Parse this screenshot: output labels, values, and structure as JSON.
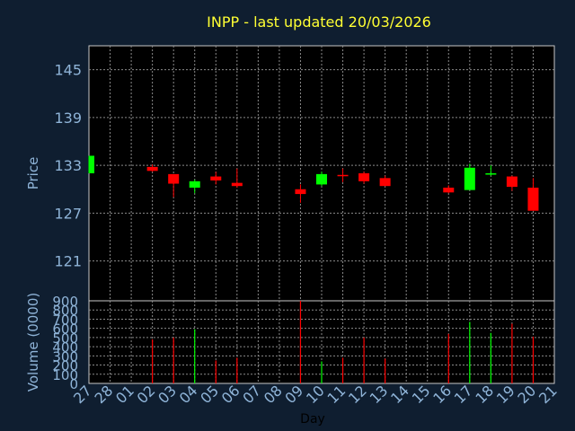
{
  "chart_data": {
    "type": "candlestick",
    "title": "INPP - last updated 20/03/2026",
    "xlabel": "Day",
    "price_panel": {
      "ylabel": "Price",
      "ylim": [
        116,
        148
      ],
      "yticks": [
        145,
        139,
        133,
        127,
        121
      ],
      "grid": true
    },
    "volume_panel": {
      "ylabel": "Volume (0000)",
      "ylim": [
        0,
        900
      ],
      "yticks": [
        900,
        800,
        700,
        600,
        500,
        400,
        300,
        200,
        100,
        0
      ],
      "grid": true
    },
    "x_ticks": [
      "27",
      "28",
      "01",
      "02",
      "03",
      "04",
      "05",
      "06",
      "07",
      "08",
      "09",
      "10",
      "11",
      "12",
      "13",
      "14",
      "15",
      "16",
      "17",
      "18",
      "19",
      "20",
      "21"
    ],
    "candles": [
      {
        "day": "27",
        "open": 132.0,
        "close": 134.2,
        "high": 134.2,
        "low": 132.0,
        "volume": 0
      },
      {
        "day": "02",
        "open": 132.8,
        "close": 132.3,
        "high": 133.1,
        "low": 132.2,
        "volume": 480
      },
      {
        "day": "03",
        "open": 131.9,
        "close": 130.7,
        "high": 131.9,
        "low": 129.0,
        "volume": 500
      },
      {
        "day": "04",
        "open": 130.2,
        "close": 131.0,
        "high": 131.2,
        "low": 129.5,
        "volume": 590
      },
      {
        "day": "05",
        "open": 131.6,
        "close": 131.1,
        "high": 132.2,
        "low": 130.6,
        "volume": 250
      },
      {
        "day": "06",
        "open": 130.8,
        "close": 130.4,
        "high": 132.6,
        "low": 130.2,
        "volume": 280
      },
      {
        "day": "09",
        "open": 130.0,
        "close": 129.4,
        "high": 130.6,
        "low": 128.3,
        "volume": 900
      },
      {
        "day": "10",
        "open": 130.6,
        "close": 131.9,
        "high": 132.2,
        "low": 130.4,
        "volume": 240
      },
      {
        "day": "11",
        "open": 131.8,
        "close": 131.7,
        "high": 132.6,
        "low": 130.9,
        "volume": 280
      },
      {
        "day": "12",
        "open": 132.0,
        "close": 131.0,
        "high": 132.2,
        "low": 130.7,
        "volume": 500
      },
      {
        "day": "13",
        "open": 131.4,
        "close": 130.4,
        "high": 131.7,
        "low": 130.4,
        "volume": 270
      },
      {
        "day": "16",
        "open": 130.2,
        "close": 129.6,
        "high": 130.5,
        "low": 129.5,
        "volume": 540
      },
      {
        "day": "17",
        "open": 129.9,
        "close": 132.7,
        "high": 133.2,
        "low": 129.9,
        "volume": 670
      },
      {
        "day": "18",
        "open": 131.9,
        "close": 132.0,
        "high": 133.0,
        "low": 131.7,
        "volume": 550
      },
      {
        "day": "19",
        "open": 131.6,
        "close": 130.3,
        "high": 131.7,
        "low": 129.8,
        "volume": 650
      },
      {
        "day": "20",
        "open": 130.2,
        "close": 127.3,
        "high": 131.4,
        "low": 127.3,
        "volume": 510
      }
    ],
    "colors": {
      "background": "#0f1e30",
      "panel": "#000000",
      "grid": "#8a8a8a",
      "title": "#ffff33",
      "axis_text": "#8fb4d8",
      "up": "#00ff00",
      "down": "#ff0000"
    }
  }
}
